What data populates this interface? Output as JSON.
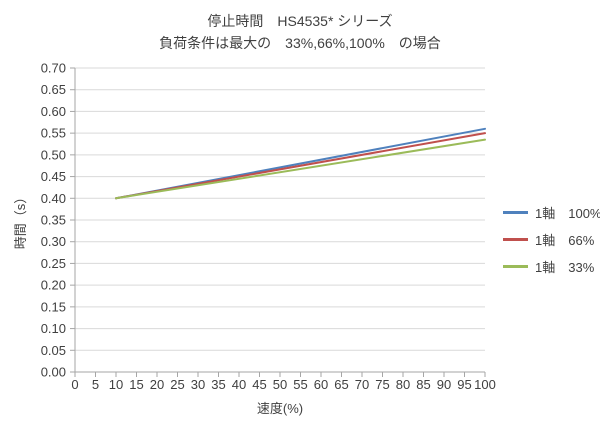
{
  "chart_data": {
    "type": "line",
    "title": "停止時間　HS4535* シリーズ",
    "subtitle": "負荷条件は最大の　33%,66%,100%　の場合",
    "xlabel": "速度(%)",
    "ylabel": "時間（s）",
    "xlim": [
      0,
      100
    ],
    "ylim": [
      0,
      0.7
    ],
    "x_tick_step": 5,
    "y_tick_step": 0.05,
    "grid": "horizontal",
    "legend_position": "right",
    "x": [
      10,
      100
    ],
    "series": [
      {
        "name": "1軸　100%",
        "color": "#4F81BD",
        "values": [
          0.4,
          0.56
        ]
      },
      {
        "name": "1軸　66%",
        "color": "#C0504D",
        "values": [
          0.4,
          0.55
        ]
      },
      {
        "name": "1軸　33%",
        "color": "#9BBB59",
        "values": [
          0.4,
          0.535
        ]
      }
    ],
    "styles": {
      "axis_color": "#A6A6A6",
      "grid_color": "#D9D9D9",
      "text_color": "#404040",
      "line_width": 2
    }
  }
}
